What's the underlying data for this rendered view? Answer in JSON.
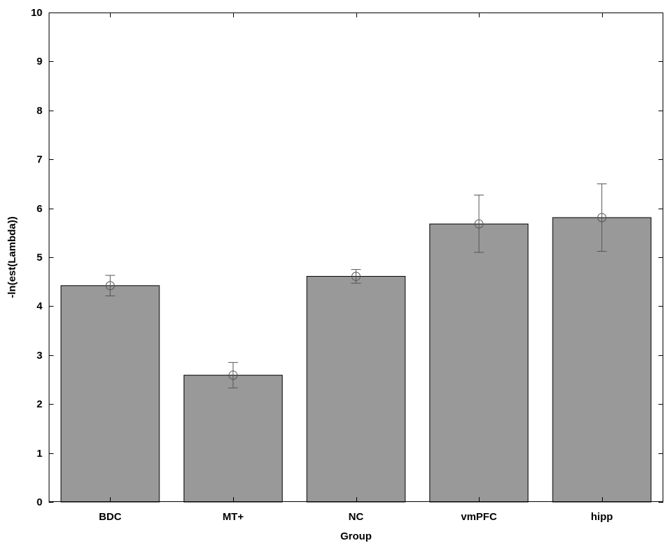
{
  "chart_data": {
    "type": "bar",
    "categories": [
      "BDC",
      "MT+",
      "NC",
      "vmPFC",
      "hipp"
    ],
    "values": [
      4.42,
      2.59,
      4.61,
      5.68,
      5.81
    ],
    "error_low": [
      4.21,
      2.33,
      4.47,
      5.1,
      5.12
    ],
    "error_high": [
      4.63,
      2.85,
      4.75,
      6.27,
      6.5
    ],
    "title": "",
    "xlabel": "Group",
    "ylabel": "-ln(est(Lambda))",
    "ylim": [
      0,
      10
    ],
    "yticks": [
      "0",
      "1",
      "2",
      "3",
      "4",
      "5",
      "6",
      "7",
      "8",
      "9",
      "10"
    ],
    "grid": false,
    "bar_color": "#999999",
    "errorbar_color": "#555555",
    "marker": "open-circle"
  }
}
